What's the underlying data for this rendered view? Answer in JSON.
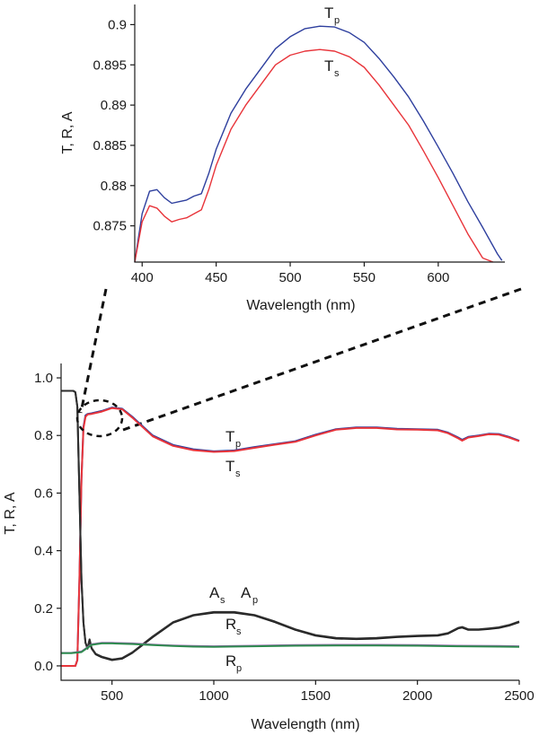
{
  "chart_data": [
    {
      "id": "inset",
      "type": "line",
      "xlabel": "Wavelength (nm)",
      "ylabel": "T, R, A",
      "xlim": [
        395,
        645
      ],
      "ylim": [
        0.8705,
        0.9025
      ],
      "xticks": [
        400,
        450,
        500,
        550,
        600
      ],
      "yticks": [
        0.875,
        0.88,
        0.885,
        0.89,
        0.895,
        0.9
      ],
      "ytick_labels": [
        "0.875",
        "0.88",
        "0.885",
        "0.89",
        "0.895",
        "0.9"
      ],
      "grid": false,
      "series": [
        {
          "name": "Tp",
          "label_main": "T",
          "label_sub": "p",
          "color": "#2e3f9e",
          "x": [
            395,
            400,
            405,
            410,
            415,
            420,
            425,
            430,
            435,
            440,
            445,
            450,
            460,
            470,
            480,
            490,
            500,
            510,
            520,
            530,
            540,
            550,
            560,
            570,
            580,
            590,
            600,
            610,
            620,
            630,
            640,
            643
          ],
          "y": [
            0.8705,
            0.8765,
            0.8793,
            0.8795,
            0.8785,
            0.8778,
            0.878,
            0.8782,
            0.8787,
            0.879,
            0.8815,
            0.8845,
            0.889,
            0.892,
            0.8945,
            0.897,
            0.8985,
            0.8995,
            0.8998,
            0.8997,
            0.899,
            0.8978,
            0.8958,
            0.8935,
            0.891,
            0.888,
            0.8848,
            0.8815,
            0.878,
            0.8748,
            0.8715,
            0.8707
          ]
        },
        {
          "name": "Ts",
          "label_main": "T",
          "label_sub": "s",
          "color": "#e8343a",
          "x": [
            395,
            400,
            405,
            410,
            415,
            420,
            425,
            430,
            435,
            440,
            445,
            450,
            460,
            470,
            480,
            490,
            500,
            510,
            520,
            530,
            540,
            550,
            560,
            570,
            580,
            590,
            600,
            610,
            620,
            630,
            637
          ],
          "y": [
            0.8705,
            0.8755,
            0.8775,
            0.8772,
            0.8762,
            0.8755,
            0.8758,
            0.876,
            0.8765,
            0.877,
            0.8795,
            0.8825,
            0.887,
            0.89,
            0.8925,
            0.895,
            0.8962,
            0.8967,
            0.8969,
            0.8967,
            0.896,
            0.8947,
            0.8925,
            0.89,
            0.8875,
            0.8843,
            0.881,
            0.8775,
            0.874,
            0.871,
            0.8705
          ]
        }
      ]
    },
    {
      "id": "main",
      "type": "line",
      "xlabel": "Wavelength (nm)",
      "ylabel": "T, R, A",
      "xlim": [
        250,
        2500
      ],
      "ylim": [
        -0.05,
        1.05
      ],
      "xticks": [
        500,
        1000,
        1500,
        2000,
        2500
      ],
      "yticks": [
        0.0,
        0.2,
        0.4,
        0.6,
        0.8,
        1.0
      ],
      "ytick_labels": [
        "0.0",
        "0.2",
        "0.4",
        "0.6",
        "0.8",
        "1.0"
      ],
      "grid": false,
      "series": [
        {
          "name": "Tp",
          "label_main": "T",
          "label_sub": "p",
          "color": "#2e3f9e",
          "x": [
            250,
            320,
            330,
            340,
            350,
            360,
            370,
            380,
            400,
            450,
            500,
            550,
            600,
            700,
            800,
            900,
            1000,
            1100,
            1200,
            1300,
            1400,
            1500,
            1600,
            1700,
            1800,
            1900,
            2000,
            2100,
            2150,
            2200,
            2220,
            2250,
            2300,
            2350,
            2400,
            2450,
            2500
          ],
          "y": [
            0.0,
            0.0,
            0.02,
            0.3,
            0.65,
            0.83,
            0.87,
            0.875,
            0.877,
            0.885,
            0.897,
            0.893,
            0.865,
            0.8,
            0.767,
            0.752,
            0.745,
            0.748,
            0.76,
            0.77,
            0.78,
            0.803,
            0.822,
            0.828,
            0.828,
            0.823,
            0.822,
            0.82,
            0.81,
            0.793,
            0.785,
            0.795,
            0.8,
            0.806,
            0.805,
            0.795,
            0.782
          ]
        },
        {
          "name": "Ts",
          "label_main": "T",
          "label_sub": "s",
          "color": "#e8343a",
          "x": [
            250,
            320,
            330,
            340,
            350,
            360,
            370,
            380,
            400,
            450,
            500,
            550,
            600,
            700,
            800,
            900,
            1000,
            1100,
            1200,
            1300,
            1400,
            1500,
            1600,
            1700,
            1800,
            1900,
            2000,
            2100,
            2150,
            2200,
            2220,
            2250,
            2300,
            2350,
            2400,
            2450,
            2500
          ],
          "y": [
            0.0,
            0.0,
            0.02,
            0.3,
            0.65,
            0.825,
            0.865,
            0.873,
            0.875,
            0.883,
            0.895,
            0.891,
            0.862,
            0.797,
            0.764,
            0.749,
            0.743,
            0.746,
            0.757,
            0.768,
            0.778,
            0.8,
            0.82,
            0.826,
            0.826,
            0.821,
            0.82,
            0.818,
            0.808,
            0.79,
            0.782,
            0.793,
            0.798,
            0.804,
            0.803,
            0.793,
            0.78
          ]
        },
        {
          "name": "As",
          "label_main": "A",
          "label_sub": "s",
          "color": "#111111",
          "x": [
            250,
            310,
            320,
            330,
            340,
            350,
            360,
            370,
            380,
            390,
            400,
            420,
            450,
            500,
            550,
            600,
            700,
            800,
            900,
            1000,
            1100,
            1200,
            1300,
            1400,
            1500,
            1600,
            1700,
            1800,
            1900,
            2000,
            2100,
            2150,
            2200,
            2220,
            2250,
            2300,
            2350,
            2400,
            2450,
            2500
          ],
          "y": [
            0.955,
            0.955,
            0.95,
            0.9,
            0.6,
            0.3,
            0.15,
            0.08,
            0.06,
            0.09,
            0.06,
            0.04,
            0.03,
            0.02,
            0.025,
            0.045,
            0.1,
            0.15,
            0.175,
            0.185,
            0.185,
            0.175,
            0.152,
            0.125,
            0.105,
            0.095,
            0.093,
            0.095,
            0.1,
            0.103,
            0.105,
            0.112,
            0.13,
            0.133,
            0.125,
            0.125,
            0.128,
            0.132,
            0.14,
            0.152
          ]
        },
        {
          "name": "Ap",
          "label_main": "A",
          "label_sub": "p",
          "color": "#2e2e2e",
          "x": [
            250,
            310,
            320,
            330,
            340,
            350,
            360,
            370,
            380,
            390,
            400,
            420,
            450,
            500,
            550,
            600,
            700,
            800,
            900,
            1000,
            1100,
            1200,
            1300,
            1400,
            1500,
            1600,
            1700,
            1800,
            1900,
            2000,
            2100,
            2150,
            2200,
            2220,
            2250,
            2300,
            2350,
            2400,
            2450,
            2500
          ],
          "y": [
            0.955,
            0.955,
            0.95,
            0.9,
            0.6,
            0.3,
            0.15,
            0.08,
            0.062,
            0.092,
            0.062,
            0.042,
            0.032,
            0.022,
            0.027,
            0.047,
            0.102,
            0.152,
            0.177,
            0.187,
            0.187,
            0.177,
            0.154,
            0.127,
            0.107,
            0.097,
            0.095,
            0.097,
            0.102,
            0.105,
            0.107,
            0.114,
            0.132,
            0.135,
            0.127,
            0.127,
            0.13,
            0.134,
            0.142,
            0.154
          ]
        },
        {
          "name": "Rs",
          "label_main": "R",
          "label_sub": "s",
          "color": "#9a6fb0",
          "x": [
            250,
            300,
            350,
            400,
            450,
            500,
            600,
            700,
            800,
            900,
            1000,
            1200,
            1400,
            1600,
            1800,
            2000,
            2200,
            2400,
            2500
          ],
          "y": [
            0.045,
            0.045,
            0.05,
            0.075,
            0.08,
            0.08,
            0.078,
            0.074,
            0.071,
            0.069,
            0.068,
            0.07,
            0.072,
            0.073,
            0.073,
            0.072,
            0.07,
            0.069,
            0.068
          ]
        },
        {
          "name": "Rp",
          "label_main": "R",
          "label_sub": "p",
          "color": "#2d8a4e",
          "x": [
            250,
            300,
            350,
            400,
            450,
            500,
            600,
            700,
            800,
            900,
            1000,
            1200,
            1400,
            1600,
            1800,
            2000,
            2200,
            2400,
            2500
          ],
          "y": [
            0.044,
            0.044,
            0.048,
            0.073,
            0.078,
            0.078,
            0.076,
            0.072,
            0.069,
            0.067,
            0.066,
            0.068,
            0.07,
            0.071,
            0.071,
            0.07,
            0.068,
            0.067,
            0.066
          ]
        }
      ]
    }
  ]
}
